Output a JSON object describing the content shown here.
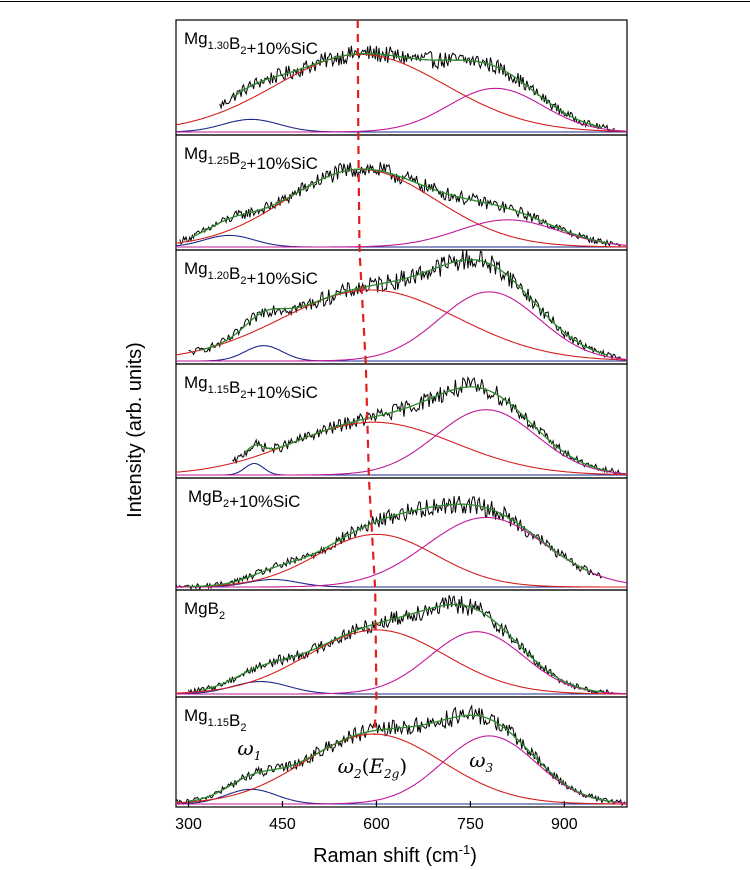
{
  "chart_data": {
    "type": "line",
    "xlabel": "Raman shift (cm",
    "xlabel_sup": "-1",
    "xlabel_tail": ")",
    "ylabel": "Intensity (arb. units)",
    "xlim": [
      280,
      1000
    ],
    "xticks": [
      300,
      450,
      600,
      750,
      900
    ],
    "colors": {
      "data": "#000000",
      "fit": "#2a8a2a",
      "w1": "#1f2a8c",
      "w2": "#d42020",
      "w3": "#c0189a",
      "guide": "#e02020"
    },
    "panels": [
      {
        "label": [
          {
            "t": "Mg"
          },
          {
            "t": "1.30",
            "sub": true
          },
          {
            "t": "B"
          },
          {
            "t": "2",
            "sub": true
          },
          {
            "t": "+10%SiC"
          }
        ],
        "baseline": 0.05,
        "range": [
          350,
          980
        ],
        "w1": {
          "center": 400,
          "width": 45,
          "amp": 0.13
        },
        "w2": {
          "center": 575,
          "width": 135,
          "amp": 0.8
        },
        "w3": {
          "center": 790,
          "width": 75,
          "amp": 0.45
        }
      },
      {
        "label": [
          {
            "t": "Mg"
          },
          {
            "t": "1.25",
            "sub": true
          },
          {
            "t": "B"
          },
          {
            "t": "2",
            "sub": true
          },
          {
            "t": "+10%SiC"
          }
        ],
        "baseline": 0.05,
        "range": [
          285,
          990
        ],
        "w1": {
          "center": 365,
          "width": 40,
          "amp": 0.12
        },
        "w2": {
          "center": 575,
          "width": 120,
          "amp": 0.8
        },
        "w3": {
          "center": 810,
          "width": 80,
          "amp": 0.28
        }
      },
      {
        "label": [
          {
            "t": "Mg"
          },
          {
            "t": "1.20",
            "sub": true
          },
          {
            "t": "B"
          },
          {
            "t": "2",
            "sub": true
          },
          {
            "t": "+10%SiC"
          }
        ],
        "baseline": 0.04,
        "range": [
          300,
          990
        ],
        "w1": {
          "center": 420,
          "width": 30,
          "amp": 0.16
        },
        "w2": {
          "center": 590,
          "width": 140,
          "amp": 0.74
        },
        "w3": {
          "center": 780,
          "width": 80,
          "amp": 0.72
        }
      },
      {
        "label": [
          {
            "t": "Mg"
          },
          {
            "t": "1.15",
            "sub": true
          },
          {
            "t": "B"
          },
          {
            "t": "2",
            "sub": true
          },
          {
            "t": "+10%SiC"
          }
        ],
        "baseline": 0.03,
        "range": [
          370,
          990
        ],
        "w1": {
          "center": 405,
          "width": 15,
          "amp": 0.12
        },
        "w2": {
          "center": 595,
          "width": 130,
          "amp": 0.55
        },
        "w3": {
          "center": 775,
          "width": 80,
          "amp": 0.68
        }
      },
      {
        "label": [
          {
            "t": "MgB"
          },
          {
            "t": "2",
            "sub": true
          },
          {
            "t": "+10%SiC"
          }
        ],
        "baseline": 0.03,
        "range": [
          280,
          960
        ],
        "w1": {
          "center": 435,
          "width": 40,
          "amp": 0.08
        },
        "w2": {
          "center": 600,
          "width": 95,
          "amp": 0.56
        },
        "w3": {
          "center": 775,
          "width": 95,
          "amp": 0.74
        }
      },
      {
        "label": [
          {
            "t": "MgB"
          },
          {
            "t": "2",
            "sub": true
          }
        ],
        "baseline": 0.03,
        "range": [
          300,
          980
        ],
        "w1": {
          "center": 415,
          "width": 45,
          "amp": 0.14
        },
        "w2": {
          "center": 600,
          "width": 110,
          "amp": 0.72
        },
        "w3": {
          "center": 760,
          "width": 75,
          "amp": 0.7
        }
      },
      {
        "label": [
          {
            "t": "Mg"
          },
          {
            "t": "1.15",
            "sub": true
          },
          {
            "t": "B"
          },
          {
            "t": "2",
            "sub": true
          }
        ],
        "baseline": 0.03,
        "range": [
          280,
          1000
        ],
        "w1": {
          "center": 400,
          "width": 40,
          "amp": 0.16
        },
        "w2": {
          "center": 595,
          "width": 110,
          "amp": 0.76
        },
        "w3": {
          "center": 780,
          "width": 75,
          "amp": 0.74
        }
      }
    ],
    "annotations": [
      {
        "name": "omega1",
        "text": "ω",
        "sub": "1",
        "x": 410
      },
      {
        "name": "omega2",
        "text": "ω",
        "sub": "2",
        "paren_text": "E",
        "paren_sub": "2g",
        "x": 570
      },
      {
        "name": "omega3",
        "text": "ω",
        "sub": "3",
        "x": 780
      }
    ],
    "guide_line_x": [
      570,
      571,
      573,
      583,
      588,
      598,
      600
    ]
  }
}
